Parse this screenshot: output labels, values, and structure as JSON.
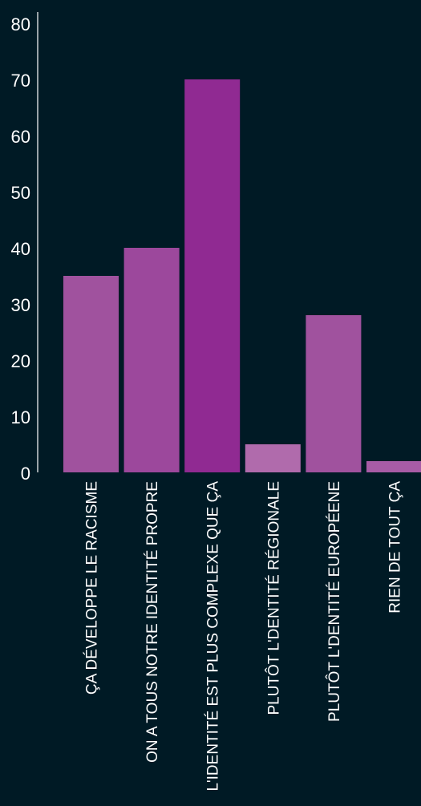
{
  "chart_data": {
    "type": "bar",
    "categories": [
      "ÇA DÉVELOPPE LE RACISME",
      "ON A TOUS NOTRE IDENTITÉ PROPRE",
      "L'IDENTITÉ EST PLUS COMPLEXE QUE ÇA",
      "PLUTÔT L'DENTITÉ RÉGIONALE",
      "PLUTÔT L'DENTITÉ EUROPÉENE",
      "RIEN DE TOUT ÇA"
    ],
    "values": [
      35,
      40,
      70,
      5,
      28,
      2
    ],
    "colors": [
      "#a0529e",
      "#9c489c",
      "#902a92",
      "#b06bac",
      "#a0529e",
      "#a85ca6"
    ],
    "ylim": [
      0,
      80
    ],
    "yticks": [
      0,
      10,
      20,
      30,
      40,
      50,
      60,
      70,
      80
    ],
    "grid": false,
    "title": "",
    "xlabel": "",
    "ylabel": ""
  }
}
